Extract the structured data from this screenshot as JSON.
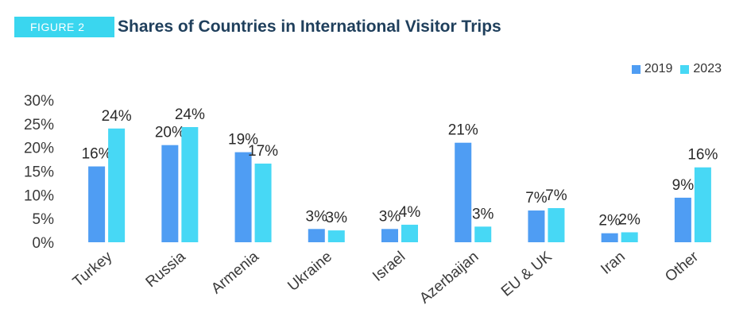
{
  "header": {
    "figure_label": "FIGURE 2",
    "title": "Shares of Countries in International Visitor Trips"
  },
  "colors": {
    "accent": "#3ad6ef",
    "title": "#1f3f5c"
  },
  "chart_data": {
    "type": "bar",
    "title": "Shares of Countries in International Visitor Trips",
    "categories": [
      "Turkey",
      "Russia",
      "Armenia",
      "Ukraine",
      "Israel",
      "Azerbaijan",
      "EU & UK",
      "Iran",
      "Other"
    ],
    "series": [
      {
        "name": "2019",
        "color": "#4f9df3",
        "values": [
          16,
          20.5,
          19,
          2.8,
          2.8,
          21,
          6.7,
          1.9,
          9.4
        ],
        "labels": [
          "16%",
          "20%",
          "19%",
          "3%",
          "3%",
          "21%",
          "7%",
          "2%",
          "9%"
        ]
      },
      {
        "name": "2023",
        "color": "#47d8f5",
        "values": [
          24,
          24.3,
          16.6,
          2.5,
          3.7,
          3.3,
          7.2,
          2.1,
          15.8
        ],
        "labels": [
          "24%",
          "24%",
          "17%",
          "3%",
          "4%",
          "3%",
          "7%",
          "2%",
          "16%"
        ]
      }
    ],
    "ylim": [
      0,
      30
    ],
    "yticks": [
      "0%",
      "5%",
      "10%",
      "15%",
      "20%",
      "25%",
      "30%"
    ],
    "grid": false,
    "legend_position": "top-right"
  }
}
